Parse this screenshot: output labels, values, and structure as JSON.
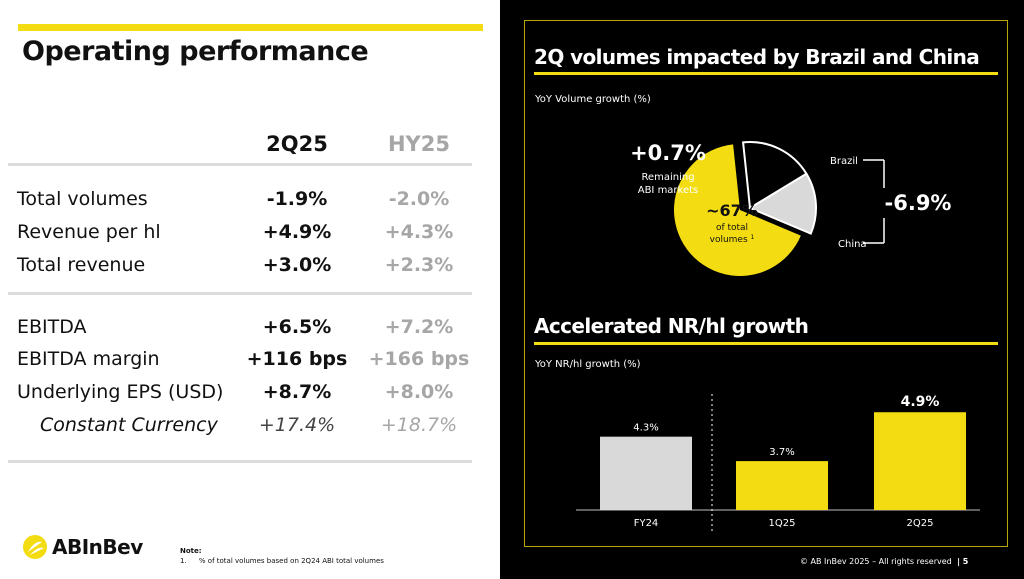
{
  "left": {
    "title": "Operating performance",
    "columns": [
      "2Q25",
      "HY25"
    ],
    "rows": [
      {
        "label": "Total volumes",
        "q": "-1.9%",
        "hy": "-2.0%"
      },
      {
        "label": "Revenue per hl",
        "q": "+4.9%",
        "hy": "+4.3%"
      },
      {
        "label": "Total revenue",
        "q": "+3.0%",
        "hy": "+2.3%"
      },
      {
        "label": "EBITDA",
        "q": "+6.5%",
        "hy": "+7.2%"
      },
      {
        "label": "EBITDA margin",
        "q": "+116 bps",
        "hy": "+166 bps"
      },
      {
        "label": "Underlying EPS (USD)",
        "q": "+8.7%",
        "hy": "+8.0%"
      },
      {
        "label": "Constant Currency",
        "q": "+17.4%",
        "hy": "+18.7%"
      }
    ],
    "brand": "ABInBev",
    "note_title": "Note:",
    "note_num": "1.",
    "note_text": "% of total volumes based on 2Q24 ABI total volumes"
  },
  "right": {
    "title1": "2Q volumes impacted by Brazil and China",
    "subtitle1": "YoY Volume growth (%)",
    "title2": "Accelerated NR/hl growth",
    "subtitle2": "YoY NR/hl growth (%)",
    "footer": "© AB InBev 2025 – All rights reserved",
    "page_number": "5"
  },
  "chart_data": [
    {
      "type": "pie",
      "title": "2Q volumes impacted by Brazil and China",
      "subtitle": "YoY Volume growth (%)",
      "slices": [
        {
          "name": "Remaining ABI markets",
          "share": 67,
          "value_label": "+0.7%",
          "share_label": "~67%",
          "sub_label": "of total volumes",
          "footnote": "1",
          "color": "#f3dc12"
        },
        {
          "name": "Brazil",
          "share": 18,
          "color": "#000000"
        },
        {
          "name": "China",
          "share": 15,
          "color": "#d9d9d9"
        }
      ],
      "combined_label": "-6.9%",
      "left_label_line1": "Remaining",
      "left_label_line2": "ABI markets",
      "sub_line1": "of total",
      "sub_line2": "volumes"
    },
    {
      "type": "bar",
      "title": "Accelerated NR/hl growth",
      "ylabel": "YoY NR/hl growth (%)",
      "categories": [
        "FY24",
        "1Q25",
        "2Q25"
      ],
      "values": [
        4.3,
        3.7,
        4.9
      ],
      "labels": [
        "4.3%",
        "3.7%",
        "4.9%"
      ],
      "colors": [
        "#d9d9d9",
        "#f3dc12",
        "#f3dc12"
      ],
      "ylim": [
        2.5,
        5.2
      ]
    }
  ],
  "colors": {
    "accent": "#f3dc12",
    "grey": "#a6a6a6",
    "light_grey": "#d9d9d9",
    "background_dark": "#000000"
  }
}
